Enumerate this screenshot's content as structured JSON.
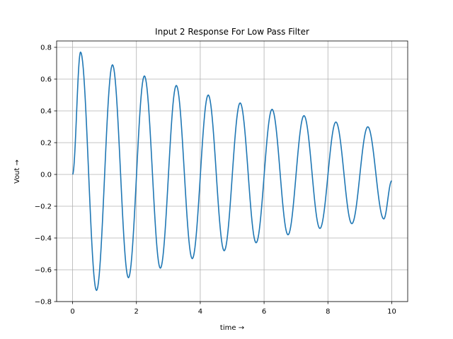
{
  "chart_data": {
    "type": "line",
    "title": "Input 2 Response For Low Pass Filter",
    "xlabel": "time →",
    "ylabel": "Vout →",
    "xlim": [
      -0.5,
      10.5
    ],
    "ylim": [
      -0.8,
      0.84
    ],
    "x_ticks": [
      0,
      2,
      4,
      6,
      8,
      10
    ],
    "x_tick_labels": [
      "0",
      "2",
      "4",
      "6",
      "8",
      "10"
    ],
    "y_ticks": [
      -0.8,
      -0.6,
      -0.4,
      -0.2,
      0.0,
      0.2,
      0.4,
      0.6,
      0.8
    ],
    "y_tick_labels": [
      "−0.8",
      "−0.6",
      "−0.4",
      "−0.2",
      "0.0",
      "0.2",
      "0.4",
      "0.6",
      "0.8"
    ],
    "grid": true,
    "series": [
      {
        "color": "#1f77b4",
        "x": [
          0,
          0.25,
          0.75,
          1.25,
          1.75,
          2.25,
          2.75,
          3.25,
          3.75,
          4.25,
          4.75,
          5.25,
          5.75,
          6.25,
          6.75,
          7.25,
          7.75,
          8.25,
          8.75,
          9.25,
          9.75,
          10
        ],
        "y": [
          0.0,
          0.77,
          -0.73,
          0.69,
          -0.65,
          0.62,
          -0.59,
          0.56,
          -0.53,
          0.5,
          -0.48,
          0.45,
          -0.43,
          0.41,
          -0.38,
          0.37,
          -0.34,
          0.33,
          -0.31,
          0.3,
          -0.28,
          -0.04
        ]
      }
    ]
  }
}
